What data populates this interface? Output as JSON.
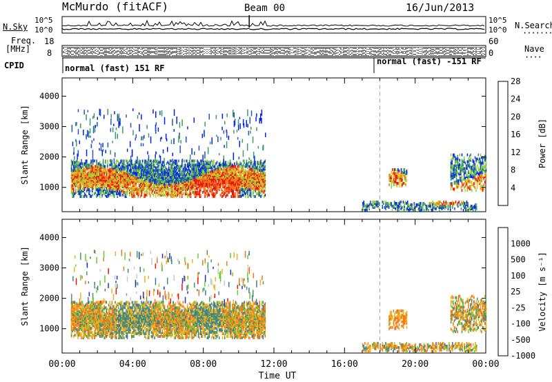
{
  "header": {
    "station": "McMurdo (fitACF)",
    "beam": "Beam 00",
    "date": "16/Jun/2013"
  },
  "noise_panel": {
    "left_label": "N.Sky",
    "right_label": "N.Search",
    "left_ticks": [
      "10^5",
      "10^0"
    ],
    "right_ticks": [
      "10^5",
      "10^0"
    ]
  },
  "freq_panel": {
    "left_label_line1": "Freq.",
    "left_label_line2": "[MHz]",
    "left_ticks": [
      "18",
      "8"
    ],
    "right_label": "Nave",
    "right_ticks": [
      "60",
      "0"
    ]
  },
  "cpid_panel": {
    "label": "CPID",
    "segments": [
      {
        "start_hour": 0,
        "text": "normal (fast) 151 RF"
      },
      {
        "start_hour": 18,
        "text": "normal (fast) -151 RF"
      }
    ]
  },
  "chart_data": [
    {
      "type": "heatmap",
      "quantity": "power",
      "ylabel": "Slant Range [km]",
      "yticks": [
        1000,
        2000,
        3000,
        4000
      ],
      "ylim": [
        200,
        4600
      ],
      "xlim": [
        0,
        24
      ],
      "colorbar": {
        "label": "Power [dB]",
        "tick_labels": [
          "4",
          "8",
          "12",
          "16",
          "20",
          "24",
          "28"
        ],
        "colors": [
          "#0022ee",
          "#2255bb",
          "#3a9a6a",
          "#8ed23a",
          "#f0c020",
          "#f07818",
          "#ee1010"
        ]
      },
      "echo_regions": [
        {
          "x": [
            0.5,
            11.5
          ],
          "range_km": [
            700,
            1900
          ],
          "level": "high"
        },
        {
          "x": [
            18.5,
            19.5
          ],
          "range_km": [
            1000,
            1600
          ],
          "level": "low"
        },
        {
          "x": [
            17.0,
            23.5
          ],
          "range_km": [
            250,
            550
          ],
          "level": "low"
        },
        {
          "x": [
            22.0,
            24.0
          ],
          "range_km": [
            900,
            2100
          ],
          "level": "low"
        }
      ]
    },
    {
      "type": "heatmap",
      "quantity": "velocity",
      "ylabel": "Slant Range [km]",
      "yticks": [
        1000,
        2000,
        3000,
        4000
      ],
      "ylim": [
        200,
        4600
      ],
      "xlim": [
        0,
        24
      ],
      "colorbar": {
        "label": "Velocity [m s⁻¹]",
        "tick_labels": [
          "1000",
          "500",
          "100",
          "25",
          "-25",
          "-100",
          "-500",
          "-1000"
        ],
        "colors": [
          "#2233bb",
          "#3a7a9a",
          "#4a9a5a",
          "#66cc33",
          "#c8c8c8",
          "#f0b020",
          "#f07818",
          "#ee1010"
        ]
      },
      "echo_regions": [
        {
          "x": [
            0.5,
            11.5
          ],
          "range_km": [
            700,
            1900
          ],
          "level": "mixed"
        },
        {
          "x": [
            18.5,
            19.5
          ],
          "range_km": [
            1000,
            1600
          ],
          "level": "negative"
        },
        {
          "x": [
            17.0,
            23.5
          ],
          "range_km": [
            250,
            550
          ],
          "level": "mixed"
        },
        {
          "x": [
            22.0,
            24.0
          ],
          "range_km": [
            900,
            2100
          ],
          "level": "mixed"
        }
      ]
    }
  ],
  "xaxis": {
    "tick_labels": [
      "00:00",
      "04:00",
      "08:00",
      "12:00",
      "16:00",
      "20:00",
      "00:00"
    ],
    "label": "Time UT"
  }
}
